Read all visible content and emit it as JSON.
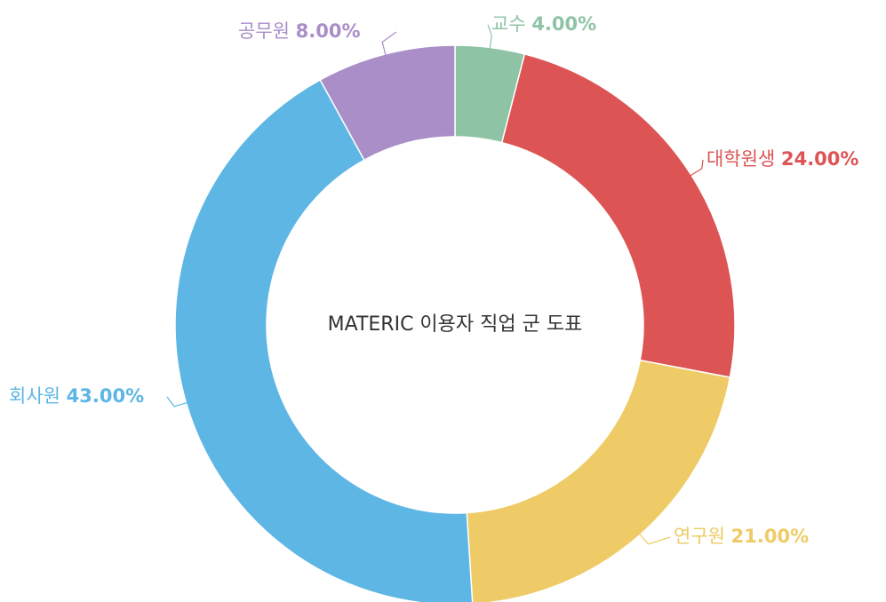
{
  "chart_data": {
    "type": "donut",
    "title": "MATERIC 이용자 직업 군 도표",
    "categories": [
      "교수",
      "대학원생",
      "연구원",
      "회사원",
      "공무원"
    ],
    "values": [
      4,
      24,
      21,
      43,
      8
    ],
    "value_labels": [
      "4.00%",
      "24.00%",
      "21.00%",
      "43.00%",
      "8.00%"
    ],
    "colors": [
      "#8fc3a6",
      "#dc5454",
      "#eecb66",
      "#5db6e4",
      "#a98ec8"
    ]
  }
}
